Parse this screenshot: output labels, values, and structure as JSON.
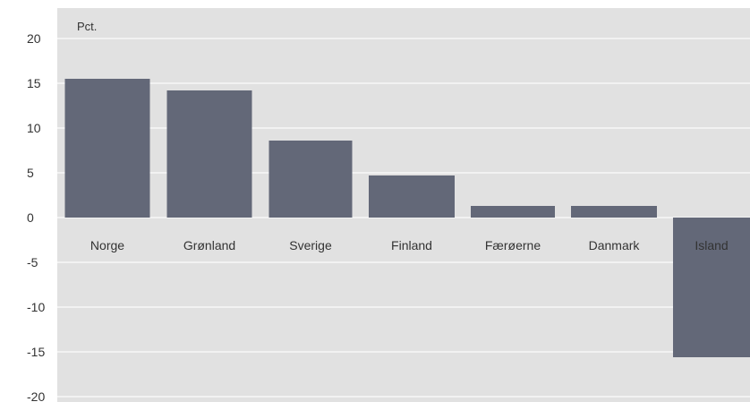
{
  "chart_data": {
    "type": "bar",
    "unit_label": "Pct.",
    "categories": [
      "Norge",
      "Grønland",
      "Sverige",
      "Finland",
      "Færøerne",
      "Danmark",
      "Island"
    ],
    "values": [
      15.5,
      14.2,
      8.6,
      4.7,
      1.3,
      1.3,
      -15.6
    ],
    "ylim": [
      -20,
      20
    ],
    "yticks": [
      20,
      15,
      10,
      5,
      0,
      -5,
      -10,
      -15,
      -20
    ],
    "grid": true,
    "bar_color": "#636878",
    "plot_background": "#e1e1e1",
    "grid_color": "#f7f7f7"
  }
}
